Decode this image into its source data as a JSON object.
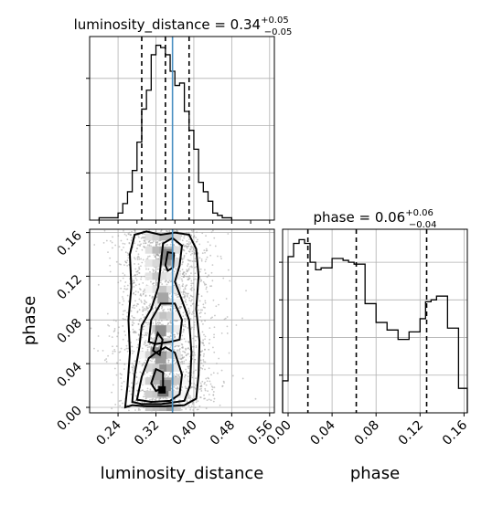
{
  "chart_data": {
    "type": "corner",
    "parameters": [
      "luminosity_distance",
      "phase"
    ],
    "truth": {
      "luminosity_distance": 0.355,
      "phase": 0.015
    },
    "panels": [
      {
        "id": "hist-luminosity_distance",
        "type": "histogram",
        "title_main": "luminosity_distance = 0.34",
        "title_sup": "+0.05",
        "title_sub": "−0.05",
        "xlim": [
          0.18,
          0.57
        ],
        "bin_edges": [
          0.2,
          0.21,
          0.22,
          0.23,
          0.24,
          0.25,
          0.26,
          0.27,
          0.28,
          0.29,
          0.3,
          0.31,
          0.32,
          0.33,
          0.34,
          0.35,
          0.36,
          0.37,
          0.38,
          0.39,
          0.4,
          0.41,
          0.42,
          0.43,
          0.44,
          0.45,
          0.46,
          0.47,
          0.48
        ],
        "counts": [
          1,
          1,
          1,
          1,
          3,
          7,
          12,
          21,
          33,
          47,
          55,
          70,
          74,
          73,
          70,
          63,
          57,
          58,
          46,
          38,
          30,
          16,
          12,
          8,
          3,
          2,
          1,
          1
        ],
        "quantiles": [
          0.29,
          0.34,
          0.39
        ]
      },
      {
        "id": "hist-phase",
        "type": "histogram",
        "title_main": "phase = 0.06",
        "title_sup": "+0.06",
        "title_sub": "−0.04",
        "xlim": [
          -0.005,
          0.163
        ],
        "xticks": [
          0.0,
          0.04,
          0.08,
          0.12,
          0.16
        ],
        "xlabel": "phase",
        "bin_edges": [
          -0.005,
          0.0,
          0.005,
          0.01,
          0.015,
          0.02,
          0.025,
          0.03,
          0.035,
          0.04,
          0.045,
          0.05,
          0.055,
          0.06,
          0.065,
          0.07,
          0.075,
          0.08,
          0.085,
          0.09,
          0.095,
          0.1,
          0.105,
          0.11,
          0.115,
          0.12,
          0.125,
          0.13,
          0.135,
          0.14,
          0.145,
          0.15,
          0.155,
          0.16,
          0.163
        ],
        "counts": [
          17,
          83,
          90,
          92,
          90,
          80,
          76,
          77,
          77,
          82,
          82,
          81,
          80,
          79,
          79,
          58,
          58,
          48,
          48,
          44,
          44,
          39,
          39,
          43,
          43,
          50,
          59,
          60,
          62,
          62,
          45,
          45,
          13,
          13
        ],
        "quantiles": [
          0.018,
          0.062,
          0.126
        ]
      },
      {
        "id": "joint-luminosity_distance-phase",
        "type": "2d-histogram-contour",
        "xlim": [
          0.18,
          0.57
        ],
        "ylim": [
          -0.005,
          0.163
        ],
        "xticks": [
          0.24,
          0.32,
          0.4,
          0.48,
          0.56
        ],
        "yticks": [
          0.0,
          0.04,
          0.08,
          0.12,
          0.16
        ],
        "xlabel": "luminosity_distance",
        "ylabel": "phase"
      }
    ]
  }
}
